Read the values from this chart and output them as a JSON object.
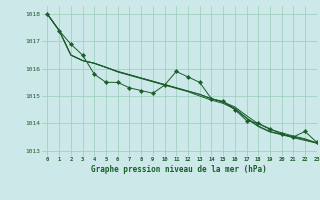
{
  "title": "Graphe pression niveau de la mer (hPa)",
  "bg_color": "#cce8e8",
  "grid_color": "#99ccbb",
  "line_color": "#1a5c2a",
  "xlim": [
    -0.5,
    23
  ],
  "ylim": [
    1012.8,
    1018.3
  ],
  "yticks": [
    1013,
    1014,
    1015,
    1016,
    1017,
    1018
  ],
  "xticks": [
    0,
    1,
    2,
    3,
    4,
    5,
    6,
    7,
    8,
    9,
    10,
    11,
    12,
    13,
    14,
    15,
    16,
    17,
    18,
    19,
    20,
    21,
    22,
    23
  ],
  "series1": [
    1018.0,
    1017.4,
    1016.9,
    1016.5,
    1015.8,
    1015.5,
    1015.5,
    1015.3,
    1015.2,
    1015.1,
    1015.4,
    1015.9,
    1015.7,
    1015.5,
    1014.9,
    1014.8,
    1014.5,
    1014.1,
    1014.0,
    1013.8,
    1013.6,
    1013.5,
    1013.7,
    1013.3
  ],
  "series2": [
    1018.0,
    1017.4,
    1016.5,
    1016.3,
    1016.2,
    1016.05,
    1015.9,
    1015.78,
    1015.66,
    1015.54,
    1015.42,
    1015.3,
    1015.18,
    1015.06,
    1014.9,
    1014.78,
    1014.55,
    1014.2,
    1013.9,
    1013.7,
    1013.6,
    1013.5,
    1013.4,
    1013.28
  ],
  "series3": [
    1018.0,
    1017.4,
    1016.5,
    1016.3,
    1016.2,
    1016.05,
    1015.9,
    1015.78,
    1015.66,
    1015.54,
    1015.42,
    1015.3,
    1015.18,
    1015.06,
    1014.9,
    1014.78,
    1014.6,
    1014.28,
    1013.98,
    1013.78,
    1013.65,
    1013.53,
    1013.43,
    1013.28
  ],
  "series4": [
    1018.0,
    1017.4,
    1016.5,
    1016.3,
    1016.2,
    1016.05,
    1015.88,
    1015.76,
    1015.64,
    1015.52,
    1015.4,
    1015.28,
    1015.16,
    1015.0,
    1014.85,
    1014.73,
    1014.52,
    1014.18,
    1013.88,
    1013.68,
    1013.58,
    1013.47,
    1013.37,
    1013.27
  ]
}
